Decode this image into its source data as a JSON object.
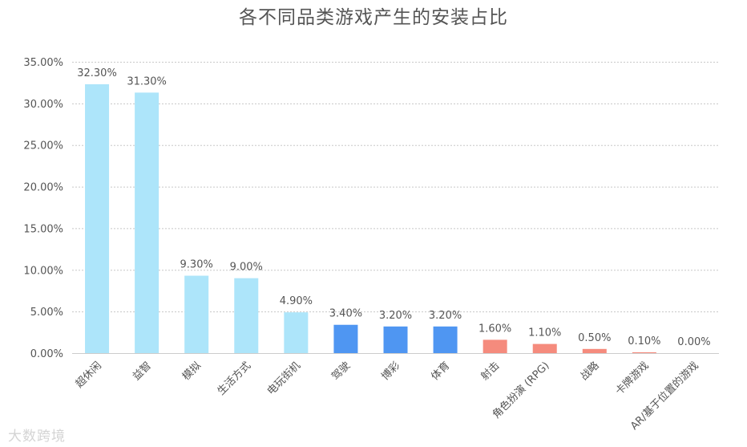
{
  "chart_data": {
    "type": "bar",
    "title": "各不同品类游戏产生的安装占比",
    "xlabel": "",
    "ylabel": "",
    "ylim": [
      0,
      35
    ],
    "y_ticks": [
      "0.00%",
      "5.00%",
      "10.00%",
      "15.00%",
      "20.00%",
      "25.00%",
      "30.00%",
      "35.00%"
    ],
    "grid": true,
    "legend": "none",
    "categories": [
      "超休闲",
      "益智",
      "模拟",
      "生活方式",
      "电玩街机",
      "驾驶",
      "博彩",
      "体育",
      "射击",
      "角色扮演 (RPG)",
      "战略",
      "卡牌游戏",
      "AR/基于位置的游戏"
    ],
    "values": [
      32.3,
      31.3,
      9.3,
      9.0,
      4.9,
      3.4,
      3.2,
      3.2,
      1.6,
      1.1,
      0.5,
      0.1,
      0.0
    ],
    "value_labels": [
      "32.30%",
      "31.30%",
      "9.30%",
      "9.00%",
      "4.90%",
      "3.40%",
      "3.20%",
      "3.20%",
      "1.60%",
      "1.10%",
      "0.50%",
      "0.10%",
      "0.00%"
    ],
    "bar_colors": [
      "#ade5fa",
      "#ade5fa",
      "#ade5fa",
      "#ade5fa",
      "#ade5fa",
      "#4f96f2",
      "#4f96f2",
      "#4f96f2",
      "#f58b7d",
      "#f58b7d",
      "#f58b7d",
      "#f58b7d",
      "#f58b7d"
    ]
  },
  "watermark": "大数跨境"
}
